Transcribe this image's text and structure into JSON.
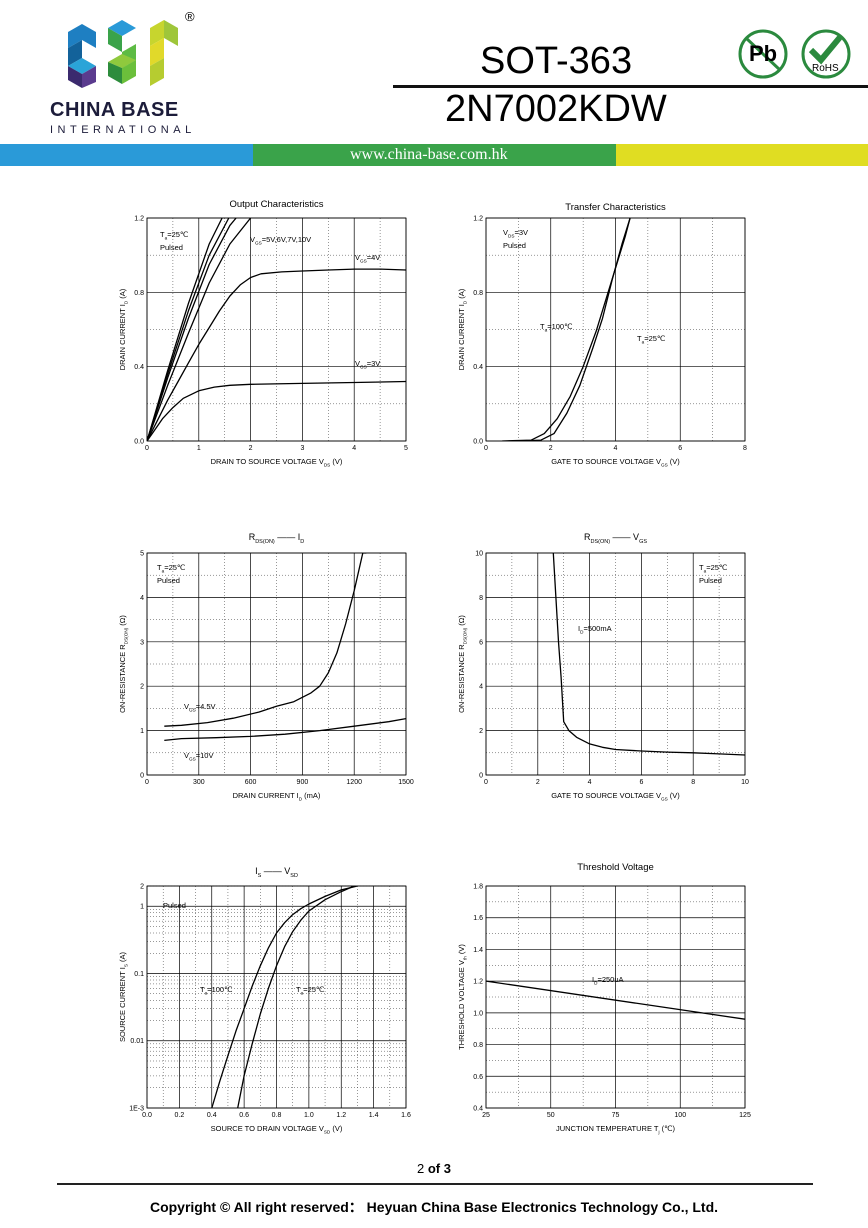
{
  "header": {
    "brand_name": "CHINA BASE",
    "brand_sub": "INTERNATIONAL",
    "registered": "®",
    "package": "SOT-363",
    "part_number": "2N7002KDW",
    "website": "www.china-base.com.hk",
    "badge_pb": "Pb",
    "badge_rohs": "RoHS",
    "colors": {
      "band_blue": "#2a9ad8",
      "band_green": "#3aa34a",
      "band_yellow": "#e0dd22"
    }
  },
  "chart_data": [
    {
      "type": "line",
      "title": "Output Characteristics",
      "xlabel": "DRAIN TO SOURCE VOLTAGE",
      "xsym": "V",
      "xsub": "DS",
      "xunit": "(V)",
      "ylabel": "DRAIN CURRENT",
      "ysym": "I",
      "ysub": "D",
      "yunit": "(A)",
      "xlim": [
        0,
        5
      ],
      "ylim": [
        0,
        1.2
      ],
      "xticks": [
        "0",
        "1",
        "2",
        "3",
        "4",
        "5"
      ],
      "yticks": [
        "0.0",
        "0.4",
        "0.8",
        "1.2"
      ],
      "annotations": [
        {
          "id": "ta",
          "text": "T",
          "sub": "a",
          "rest": "=25℃"
        },
        {
          "id": "pulsed",
          "text": "Pulsed"
        },
        {
          "id": "vgs_high",
          "text": "V",
          "sub": "GS",
          "rest": "=5V,6V,7V,10V"
        },
        {
          "id": "vgs4",
          "text": "V",
          "sub": "GS",
          "rest": "=4V"
        },
        {
          "id": "vgs3",
          "text": "V",
          "sub": "GS",
          "rest": "=3V"
        }
      ],
      "series": [
        {
          "name": "VGS=3V",
          "x": [
            0,
            0.1,
            0.2,
            0.3,
            0.5,
            0.7,
            1,
            1.3,
            1.6,
            2,
            3,
            4,
            5
          ],
          "y": [
            0,
            0.04,
            0.08,
            0.12,
            0.18,
            0.23,
            0.27,
            0.29,
            0.3,
            0.305,
            0.31,
            0.315,
            0.32
          ]
        },
        {
          "name": "VGS=4V",
          "x": [
            0,
            0.2,
            0.4,
            0.6,
            0.8,
            1.0,
            1.2,
            1.4,
            1.6,
            1.8,
            2,
            2.2,
            2.6,
            3,
            3.5,
            4,
            4.5,
            5
          ],
          "y": [
            0,
            0.11,
            0.22,
            0.32,
            0.42,
            0.52,
            0.61,
            0.7,
            0.78,
            0.84,
            0.88,
            0.9,
            0.91,
            0.915,
            0.92,
            0.925,
            0.925,
            0.92
          ]
        },
        {
          "name": "VGS=5V",
          "x": [
            0,
            0.4,
            0.8,
            1.2,
            1.6,
            2.0
          ],
          "y": [
            0,
            0.3,
            0.58,
            0.85,
            1.06,
            1.2
          ]
        },
        {
          "name": "VGS=6V",
          "x": [
            0,
            0.4,
            0.8,
            1.2,
            1.6,
            1.72
          ],
          "y": [
            0,
            0.34,
            0.66,
            0.95,
            1.16,
            1.2
          ]
        },
        {
          "name": "VGS=7V",
          "x": [
            0,
            0.4,
            0.8,
            1.2,
            1.58
          ],
          "y": [
            0,
            0.36,
            0.7,
            1.0,
            1.2
          ]
        },
        {
          "name": "VGS=10V",
          "x": [
            0,
            0.4,
            0.8,
            1.2,
            1.45
          ],
          "y": [
            0,
            0.38,
            0.74,
            1.06,
            1.2
          ]
        }
      ]
    },
    {
      "type": "line",
      "title": "Transfer Characteristics",
      "xlabel": "GATE TO SOURCE VOLTAGE",
      "xsym": "V",
      "xsub": "GS",
      "xunit": "(V)",
      "ylabel": "DRAIN CURRENT",
      "ysym": "I",
      "ysub": "D",
      "yunit": "(A)",
      "xlim": [
        0,
        8
      ],
      "ylim": [
        0,
        1.2
      ],
      "xticks": [
        "0",
        "2",
        "4",
        "6",
        "8"
      ],
      "yticks": [
        "0.0",
        "0.4",
        "0.8",
        "1.2"
      ],
      "annotations": [
        {
          "id": "vds",
          "text": "V",
          "sub": "DS",
          "rest": "=3V"
        },
        {
          "id": "pulsed",
          "text": "Pulsed"
        },
        {
          "id": "ta100",
          "text": "T",
          "sub": "a",
          "rest": "=100℃"
        },
        {
          "id": "ta25",
          "text": "T",
          "sub": "a",
          "rest": "=25℃"
        }
      ],
      "series": [
        {
          "name": "Ta=100℃",
          "x": [
            0.5,
            1.4,
            1.8,
            2.2,
            2.6,
            3.0,
            3.4,
            3.7,
            4.0,
            4.3,
            4.45
          ],
          "y": [
            0,
            0.005,
            0.04,
            0.12,
            0.24,
            0.4,
            0.59,
            0.76,
            0.93,
            1.1,
            1.2
          ]
        },
        {
          "name": "Ta=25℃",
          "x": [
            1.0,
            1.7,
            2.1,
            2.5,
            2.9,
            3.3,
            3.6,
            3.9,
            4.2,
            4.45
          ],
          "y": [
            0,
            0.005,
            0.04,
            0.15,
            0.3,
            0.5,
            0.66,
            0.87,
            1.06,
            1.2
          ]
        }
      ]
    },
    {
      "type": "line",
      "title": "RDS(ON) —— ID",
      "titleparts": {
        "a": "R",
        "asub": "DS(ON)",
        "dash": "——",
        "b": "I",
        "bsub": "D"
      },
      "xlabel": "DRAIN CURRENT",
      "xsym": "I",
      "xsub": "D",
      "xunit": "(mA)",
      "ylabel": "ON-RESISTANCE",
      "ysym": "R",
      "ysub": "DS(ON)",
      "yunit": "(Ω)",
      "xlim": [
        0,
        1500
      ],
      "ylim": [
        0,
        5
      ],
      "xticks": [
        "0",
        "300",
        "600",
        "900",
        "1200",
        "1500"
      ],
      "yticks": [
        "0",
        "1",
        "2",
        "3",
        "4",
        "5"
      ],
      "annotations": [
        {
          "id": "ta",
          "text": "T",
          "sub": "a",
          "rest": "=25℃"
        },
        {
          "id": "pulsed",
          "text": "Pulsed"
        },
        {
          "id": "vgs45",
          "text": "V",
          "sub": "GS",
          "rest": "=4.5V"
        },
        {
          "id": "vgs10",
          "text": "V",
          "sub": "GS",
          "rest": "=10V"
        }
      ],
      "series": [
        {
          "name": "VGS=4.5V",
          "x": [
            100,
            200,
            350,
            500,
            650,
            750,
            850,
            950,
            1000,
            1050,
            1100,
            1150,
            1200,
            1250,
            1270
          ],
          "y": [
            1.1,
            1.12,
            1.18,
            1.28,
            1.42,
            1.55,
            1.65,
            1.85,
            2.0,
            2.3,
            2.75,
            3.4,
            4.15,
            5.0,
            5.0
          ]
        },
        {
          "name": "VGS=10V",
          "x": [
            100,
            200,
            400,
            600,
            800,
            1000,
            1200,
            1400,
            1500
          ],
          "y": [
            0.78,
            0.82,
            0.84,
            0.87,
            0.92,
            1.0,
            1.1,
            1.2,
            1.27
          ]
        }
      ]
    },
    {
      "type": "line",
      "title": "RDS(ON) —— VGS",
      "titleparts": {
        "a": "R",
        "asub": "DS(ON)",
        "dash": "——",
        "b": "V",
        "bsub": "GS"
      },
      "xlabel": "GATE TO SOURCE VOLTAGE",
      "xsym": "V",
      "xsub": "GS",
      "xunit": "(V)",
      "ylabel": "ON-RESISTANCE",
      "ysym": "R",
      "ysub": "DS(ON)",
      "yunit": "(Ω)",
      "xlim": [
        0,
        10
      ],
      "ylim": [
        0,
        10
      ],
      "xticks": [
        "0",
        "2",
        "4",
        "6",
        "8",
        "10"
      ],
      "yticks": [
        "0",
        "2",
        "4",
        "6",
        "8",
        "10"
      ],
      "annotations": [
        {
          "id": "ta",
          "text": "T",
          "sub": "a",
          "rest": "=25℃"
        },
        {
          "id": "pulsed",
          "text": "Pulsed"
        },
        {
          "id": "id",
          "text": "I",
          "sub": "D",
          "rest": "=500mA"
        }
      ],
      "series": [
        {
          "name": "ID=500mA",
          "x": [
            2.6,
            2.7,
            2.8,
            2.9,
            3.0,
            3.2,
            3.5,
            4.0,
            4.5,
            5,
            6,
            7,
            8,
            9,
            10
          ],
          "y": [
            10,
            8.0,
            6.0,
            4.4,
            2.4,
            2.0,
            1.7,
            1.4,
            1.25,
            1.15,
            1.08,
            1.03,
            1.0,
            0.95,
            0.9
          ]
        }
      ]
    },
    {
      "type": "line",
      "title": "IS —— VSD",
      "titleparts": {
        "a": "I",
        "asub": "S",
        "dash": "——",
        "b": "V",
        "bsub": "SD"
      },
      "xlabel": "SOURCE TO DRAIN VOLTAGE",
      "xsym": "V",
      "xsub": "SD",
      "xunit": "(V)",
      "ylabel": "SOURCE CURRENT",
      "ysym": "I",
      "ysub": "S",
      "yunit": "(A)",
      "xlim": [
        0,
        1.6
      ],
      "ylim": [
        0.001,
        2
      ],
      "yscale": "log",
      "xticks": [
        "0.0",
        "0.2",
        "0.4",
        "0.6",
        "0.8",
        "1.0",
        "1.2",
        "1.4",
        "1.6"
      ],
      "yticks": [
        "1E-3",
        "0.01",
        "0.1",
        "1",
        "2"
      ],
      "annotations": [
        {
          "id": "pulsed",
          "text": "Pulsed"
        },
        {
          "id": "ta100",
          "text": "T",
          "sub": "a",
          "rest": "=100℃"
        },
        {
          "id": "ta25",
          "text": "T",
          "sub": "a",
          "rest": "=25℃"
        }
      ],
      "series": [
        {
          "name": "Ta=100℃",
          "x": [
            0.4,
            0.45,
            0.5,
            0.55,
            0.6,
            0.65,
            0.7,
            0.75,
            0.8,
            0.85,
            0.9,
            0.95,
            1.0,
            1.1,
            1.2,
            1.3
          ],
          "y": [
            0.001,
            0.0025,
            0.006,
            0.014,
            0.03,
            0.065,
            0.13,
            0.24,
            0.4,
            0.57,
            0.75,
            0.92,
            1.08,
            1.4,
            1.75,
            2
          ]
        },
        {
          "name": "Ta=25℃",
          "x": [
            0.56,
            0.6,
            0.65,
            0.7,
            0.75,
            0.8,
            0.85,
            0.9,
            0.95,
            1.0,
            1.1,
            1.2,
            1.28
          ],
          "y": [
            0.001,
            0.003,
            0.009,
            0.025,
            0.06,
            0.13,
            0.25,
            0.42,
            0.62,
            0.85,
            1.25,
            1.65,
            2
          ]
        }
      ]
    },
    {
      "type": "line",
      "title": "Threshold Voltage",
      "xlabel": "JUNCTION TEMPERATURE",
      "xsym": "T",
      "xsub": "j",
      "xunit": "(℃)",
      "ylabel": "THRESHOLD VOLTAGE",
      "ysym": "V",
      "ysub": "th",
      "yunit": "(V)",
      "xlim": [
        25,
        125
      ],
      "ylim": [
        0.4,
        1.8
      ],
      "xticks": [
        "25",
        "50",
        "75",
        "100",
        "125"
      ],
      "yticks": [
        "0.4",
        "0.6",
        "0.8",
        "1.0",
        "1.2",
        "1.4",
        "1.6",
        "1.8"
      ],
      "annotations": [
        {
          "id": "id",
          "text": "I",
          "sub": "D",
          "rest": "=250uA"
        }
      ],
      "series": [
        {
          "name": "ID=250uA",
          "x": [
            25,
            125
          ],
          "y": [
            1.2,
            0.96
          ]
        }
      ]
    }
  ],
  "footer": {
    "page_current": "2",
    "page_of": "of",
    "page_total": "3",
    "copyright": "Copyright © All right reserved：   Heyuan China Base Electronics Technology Co., Ltd."
  }
}
